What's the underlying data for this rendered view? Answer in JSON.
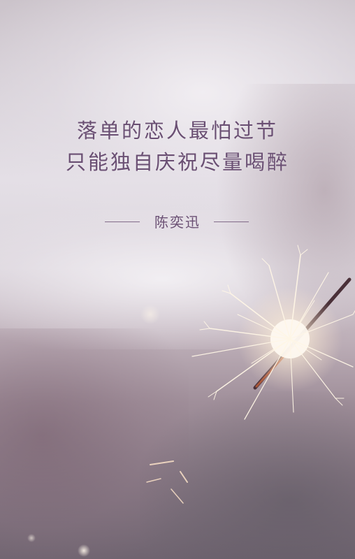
{
  "poster": {
    "lyric_lines": [
      "落单的恋人最怕过节",
      "只能独自庆祝尽量喝醉"
    ],
    "artist": "陈奕迅"
  },
  "colors": {
    "text": "#6a4f73",
    "spark": "#fff4e0",
    "background_light": "#e4dfe6",
    "background_dark": "#6f6470"
  }
}
